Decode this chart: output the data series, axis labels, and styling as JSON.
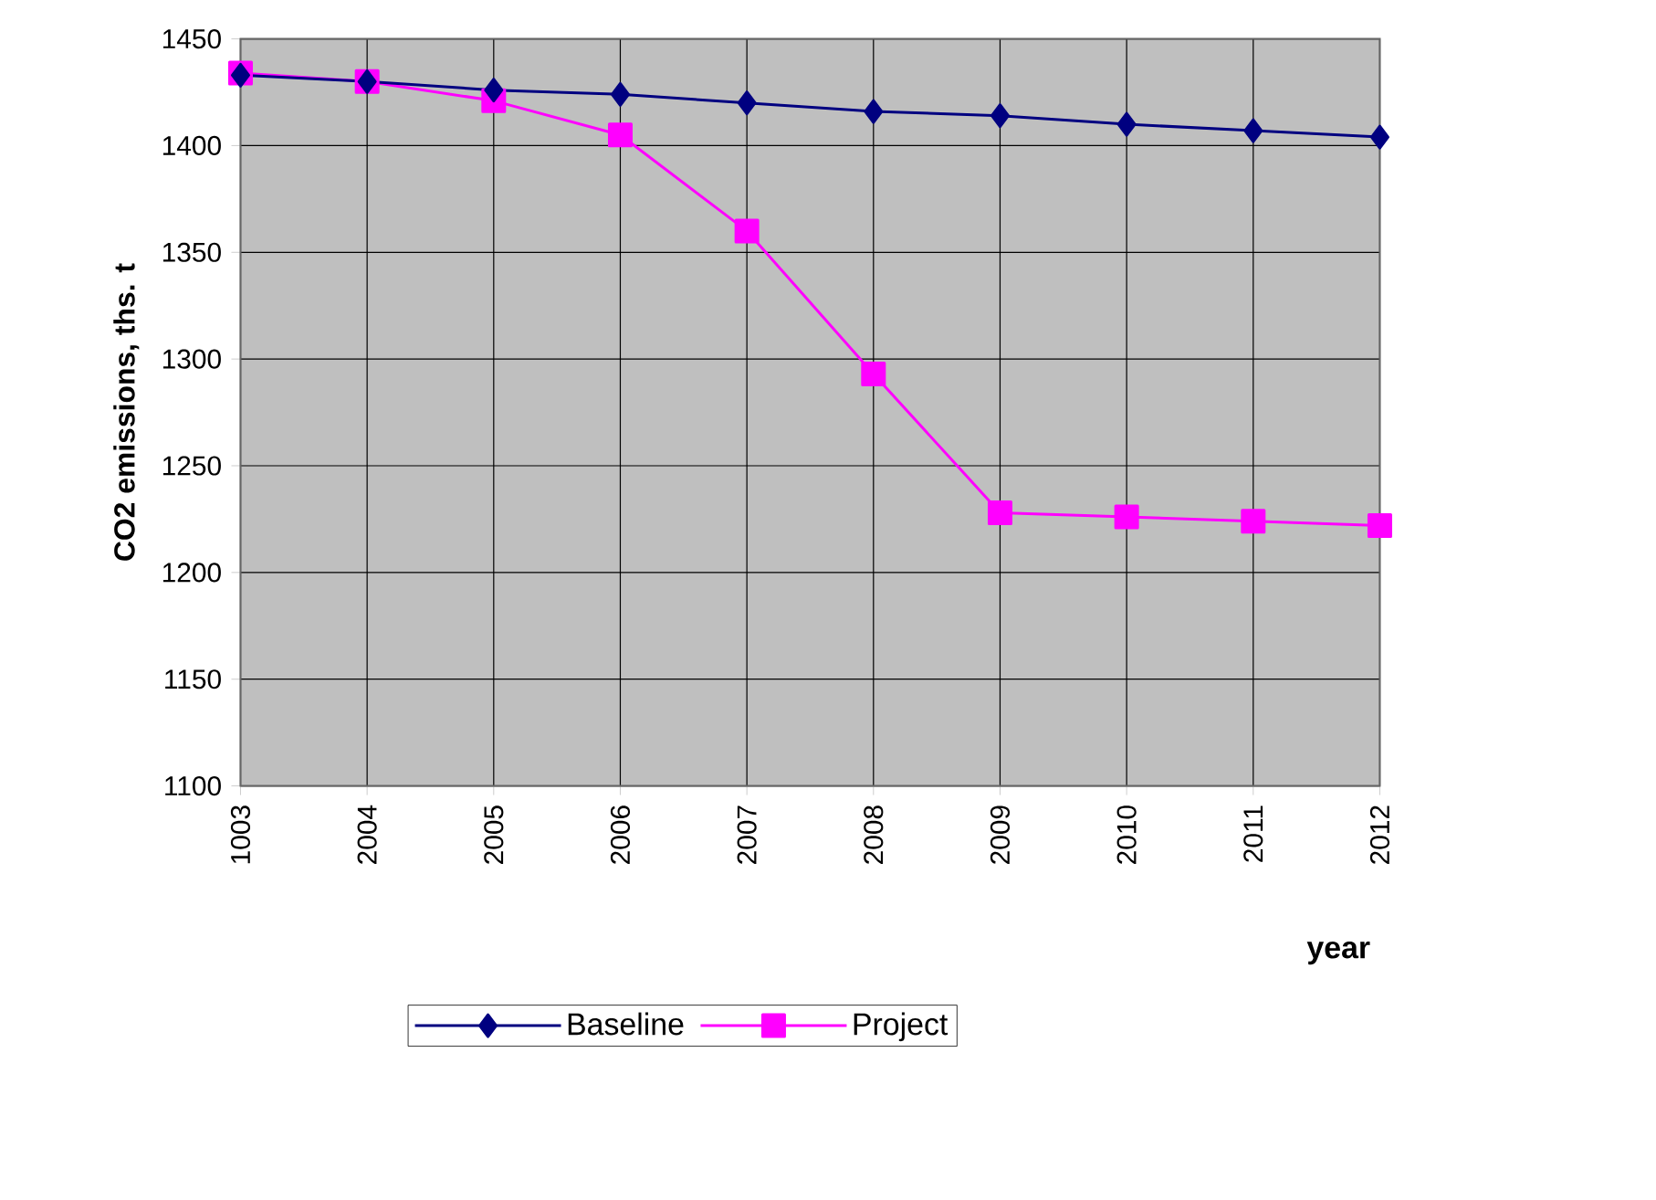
{
  "chart_data": {
    "type": "line",
    "xlabel": "year",
    "ylabel": "CO2 emissions, ths. t",
    "categories": [
      "1003",
      "2004",
      "2005",
      "2006",
      "2007",
      "2008",
      "2009",
      "2010",
      "2011",
      "2012"
    ],
    "series": [
      {
        "name": "Baseline",
        "color": "#000080",
        "marker": "diamond",
        "values": [
          1433,
          1430,
          1426,
          1424,
          1420,
          1416,
          1414,
          1410,
          1407,
          1404
        ]
      },
      {
        "name": "Project",
        "color": "#ff00ff",
        "marker": "square",
        "values": [
          1434,
          1430,
          1421,
          1405,
          1360,
          1293,
          1228,
          1226,
          1224,
          1222
        ]
      }
    ],
    "ylim": [
      1100,
      1450
    ],
    "yticks": [
      1100,
      1150,
      1200,
      1250,
      1300,
      1350,
      1400,
      1450
    ],
    "grid": true,
    "legend": "bottom",
    "line_style": "solid"
  }
}
